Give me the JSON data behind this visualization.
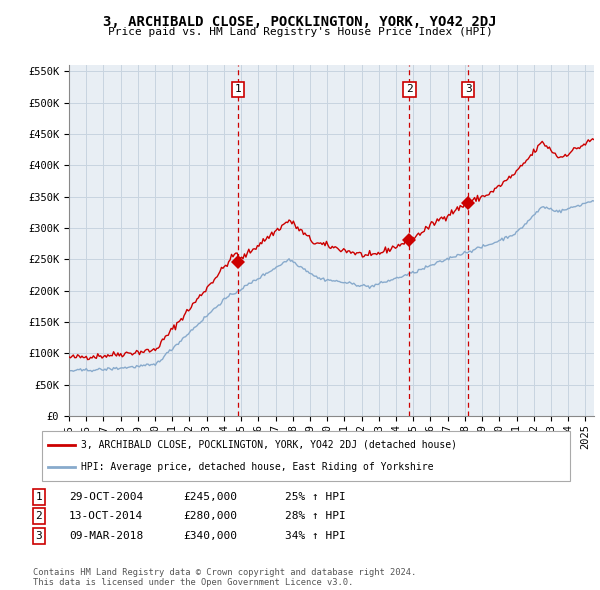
{
  "title": "3, ARCHIBALD CLOSE, POCKLINGTON, YORK, YO42 2DJ",
  "subtitle": "Price paid vs. HM Land Registry's House Price Index (HPI)",
  "ylabel_ticks": [
    "£0",
    "£50K",
    "£100K",
    "£150K",
    "£200K",
    "£250K",
    "£300K",
    "£350K",
    "£400K",
    "£450K",
    "£500K",
    "£550K"
  ],
  "ytick_values": [
    0,
    50000,
    100000,
    150000,
    200000,
    250000,
    300000,
    350000,
    400000,
    450000,
    500000,
    550000
  ],
  "ylim": [
    0,
    560000
  ],
  "xlim_start": 1995.0,
  "xlim_end": 2025.5,
  "sale_dates": [
    2004.83,
    2014.78,
    2018.19
  ],
  "sale_prices": [
    245000,
    280000,
    340000
  ],
  "sale_labels": [
    "1",
    "2",
    "3"
  ],
  "red_line_color": "#cc0000",
  "blue_line_color": "#88aacc",
  "grid_color": "#c8d4e0",
  "background_color": "#e8eef4",
  "legend_label_red": "3, ARCHIBALD CLOSE, POCKLINGTON, YORK, YO42 2DJ (detached house)",
  "legend_label_blue": "HPI: Average price, detached house, East Riding of Yorkshire",
  "table_rows": [
    [
      "1",
      "29-OCT-2004",
      "£245,000",
      "25% ↑ HPI"
    ],
    [
      "2",
      "13-OCT-2014",
      "£280,000",
      "28% ↑ HPI"
    ],
    [
      "3",
      "09-MAR-2018",
      "£340,000",
      "34% ↑ HPI"
    ]
  ],
  "footer_text": "Contains HM Land Registry data © Crown copyright and database right 2024.\nThis data is licensed under the Open Government Licence v3.0.",
  "xtick_years": [
    1995,
    1996,
    1997,
    1998,
    1999,
    2000,
    2001,
    2002,
    2003,
    2004,
    2005,
    2006,
    2007,
    2008,
    2009,
    2010,
    2011,
    2012,
    2013,
    2014,
    2015,
    2016,
    2017,
    2018,
    2019,
    2020,
    2021,
    2022,
    2023,
    2024,
    2025
  ]
}
